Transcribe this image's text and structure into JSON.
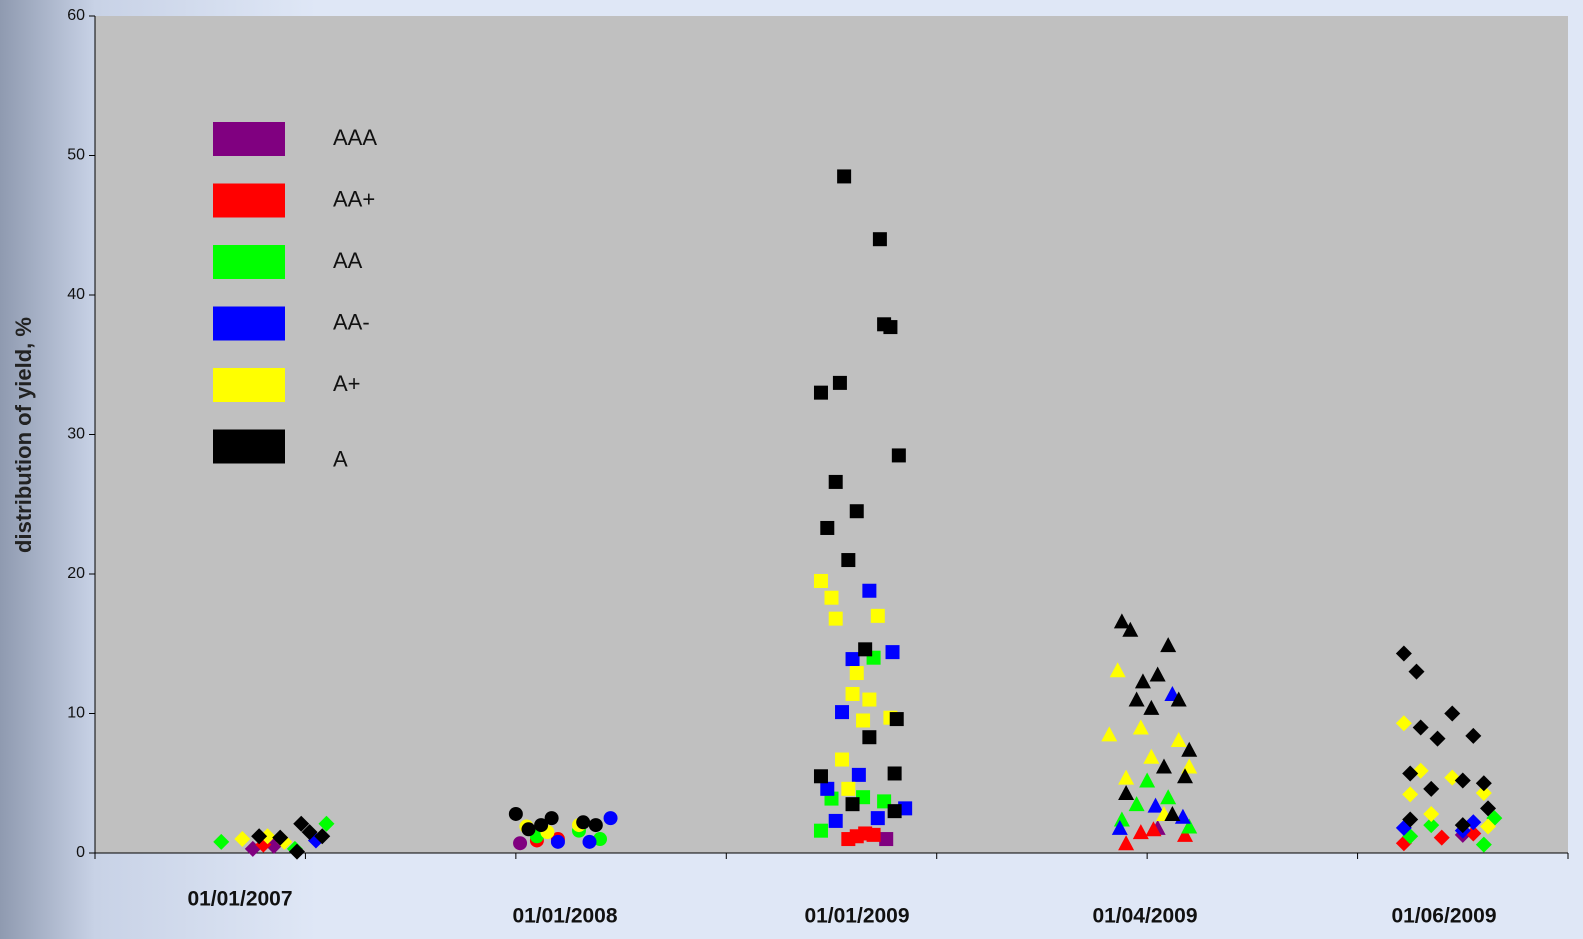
{
  "chart_data": {
    "type": "scatter",
    "y_label": "distribution of yield, %",
    "categories": [
      "01/01/2007",
      "01/01/2008",
      "01/01/2009",
      "01/04/2009",
      "01/06/2009"
    ],
    "markers": [
      "diamond",
      "circle",
      "square",
      "triangle",
      "diamond"
    ],
    "xlim": [
      0,
      7
    ],
    "xticks": [
      0,
      1,
      2,
      3,
      4,
      5,
      6,
      7
    ],
    "ylim": [
      0,
      60
    ],
    "yticks": [
      0,
      10,
      20,
      30,
      40,
      50,
      60
    ],
    "series": [
      {
        "name": "AAA",
        "color": "#800080",
        "groups": [
          {
            "x": [
              0.75,
              0.85
            ],
            "values": [
              0.3,
              0.5
            ]
          },
          {
            "x": [
              2.02
            ],
            "values": [
              0.7
            ]
          },
          {
            "x": [
              3.76
            ],
            "values": [
              1.0
            ]
          },
          {
            "x": [
              5.05
            ],
            "values": [
              1.8
            ]
          },
          {
            "x": [
              6.5
            ],
            "values": [
              1.3
            ]
          }
        ]
      },
      {
        "name": "AA+",
        "color": "#ff0000",
        "groups": [
          {
            "x": [
              0.8
            ],
            "values": [
              0.6
            ]
          },
          {
            "x": [
              2.1,
              2.2
            ],
            "values": [
              0.9,
              1.0
            ]
          },
          {
            "x": [
              3.58,
              3.62,
              3.66,
              3.7
            ],
            "values": [
              1.0,
              1.2,
              1.4,
              1.3
            ]
          },
          {
            "x": [
              4.9,
              4.97,
              5.03,
              5.18
            ],
            "values": [
              0.7,
              1.5,
              1.7,
              1.3
            ]
          },
          {
            "x": [
              6.22,
              6.4,
              6.55
            ],
            "values": [
              0.7,
              1.1,
              1.4
            ]
          }
        ]
      },
      {
        "name": "AA",
        "color": "#00ff00",
        "groups": [
          {
            "x": [
              0.6,
              0.95,
              1.1
            ],
            "values": [
              0.8,
              0.3,
              2.1
            ]
          },
          {
            "x": [
              2.1,
              2.3,
              2.4
            ],
            "values": [
              1.2,
              1.6,
              1.0
            ]
          },
          {
            "x": [
              3.45,
              3.5,
              3.65,
              3.75,
              3.7
            ],
            "values": [
              1.6,
              3.9,
              4.0,
              3.7,
              14.0
            ]
          },
          {
            "x": [
              4.88,
              4.95,
              5.0,
              5.1,
              5.2
            ],
            "values": [
              2.4,
              3.5,
              5.2,
              4.0,
              1.9
            ]
          },
          {
            "x": [
              6.25,
              6.35,
              6.6,
              6.65
            ],
            "values": [
              1.2,
              2.0,
              0.6,
              2.5
            ]
          }
        ]
      },
      {
        "name": "AA-",
        "color": "#0000ff",
        "groups": [
          {
            "x": [
              1.05
            ],
            "values": [
              0.9
            ]
          },
          {
            "x": [
              2.2,
              2.35,
              2.45
            ],
            "values": [
              0.8,
              0.8,
              2.5
            ]
          },
          {
            "x": [
              3.48,
              3.55,
              3.6,
              3.63,
              3.68,
              3.52,
              3.72,
              3.85,
              3.79
            ],
            "values": [
              4.6,
              10.1,
              13.9,
              5.6,
              18.8,
              2.3,
              2.5,
              3.2,
              14.4
            ]
          },
          {
            "x": [
              4.87,
              5.04,
              5.12,
              5.17
            ],
            "values": [
              1.8,
              3.4,
              11.4,
              2.6
            ]
          },
          {
            "x": [
              6.22,
              6.5,
              6.55
            ],
            "values": [
              1.8,
              1.6,
              2.2
            ]
          }
        ]
      },
      {
        "name": "A+",
        "color": "#ffff00",
        "groups": [
          {
            "x": [
              0.7,
              0.82,
              0.9
            ],
            "values": [
              1.0,
              1.2,
              0.8
            ]
          },
          {
            "x": [
              2.05,
              2.15,
              2.3
            ],
            "values": [
              1.9,
              1.5,
              2.0
            ]
          },
          {
            "x": [
              3.45,
              3.5,
              3.52,
              3.55,
              3.58,
              3.62,
              3.65,
              3.68,
              3.72,
              3.78,
              3.6
            ],
            "values": [
              19.5,
              18.3,
              16.8,
              6.7,
              4.6,
              12.9,
              9.5,
              11.0,
              17.0,
              9.7,
              11.4
            ]
          },
          {
            "x": [
              4.82,
              4.86,
              4.9,
              4.97,
              5.02,
              5.08,
              5.15,
              5.2
            ],
            "values": [
              8.5,
              13.1,
              5.4,
              9.0,
              6.9,
              2.8,
              8.1,
              6.2
            ]
          },
          {
            "x": [
              6.22,
              6.25,
              6.3,
              6.35,
              6.45,
              6.6,
              6.62
            ],
            "values": [
              9.3,
              4.2,
              5.9,
              2.8,
              5.4,
              4.3,
              1.9
            ]
          }
        ]
      },
      {
        "name": "A",
        "color": "#000000",
        "groups": [
          {
            "x": [
              0.78,
              0.88,
              0.98,
              1.02,
              1.08,
              0.96
            ],
            "values": [
              1.2,
              1.1,
              2.1,
              1.5,
              1.2,
              0.1
            ]
          },
          {
            "x": [
              2.0,
              2.06,
              2.12,
              2.17,
              2.32,
              2.38
            ],
            "values": [
              2.8,
              1.7,
              2.0,
              2.5,
              2.2,
              2.0
            ]
          },
          {
            "x": [
              3.45,
              3.48,
              3.52,
              3.54,
              3.56,
              3.58,
              3.62,
              3.66,
              3.68,
              3.73,
              3.75,
              3.78,
              3.82,
              3.81,
              3.8,
              3.45,
              3.6,
              3.8
            ],
            "values": [
              33.0,
              23.3,
              26.6,
              33.7,
              48.5,
              21.0,
              24.5,
              14.6,
              8.3,
              44.0,
              37.9,
              37.7,
              28.5,
              9.6,
              5.7,
              5.5,
              3.5,
              3.0
            ]
          },
          {
            "x": [
              4.88,
              4.92,
              4.95,
              4.98,
              5.02,
              5.05,
              5.08,
              5.1,
              5.15,
              5.2,
              5.12,
              5.18,
              4.9
            ],
            "values": [
              16.6,
              16.0,
              11.0,
              12.3,
              10.4,
              12.8,
              6.2,
              14.9,
              11.0,
              7.4,
              2.8,
              5.5,
              4.3
            ]
          },
          {
            "x": [
              6.22,
              6.25,
              6.28,
              6.3,
              6.35,
              6.38,
              6.45,
              6.5,
              6.55,
              6.6,
              6.25,
              6.5,
              6.62
            ],
            "values": [
              14.3,
              5.7,
              13.0,
              9.0,
              4.6,
              8.2,
              10.0,
              5.2,
              8.4,
              5.0,
              2.4,
              2.0,
              3.2
            ]
          }
        ]
      }
    ]
  }
}
